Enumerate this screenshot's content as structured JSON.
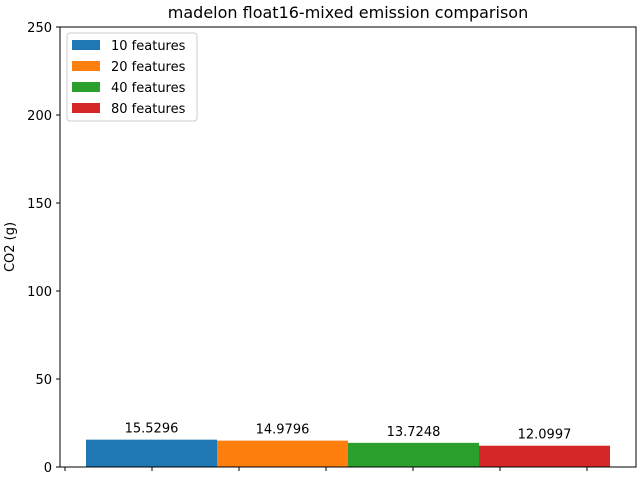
{
  "chart_data": {
    "type": "bar",
    "title": "madelon float16-mixed emission comparison",
    "xlabel": "",
    "ylabel": "CO2 (g)",
    "ylim": [
      0,
      250
    ],
    "yticks": [
      0,
      50,
      100,
      150,
      200,
      250
    ],
    "grid": false,
    "legend_position": "top-left",
    "series": [
      {
        "name": "10 features",
        "color": "#1f77b4",
        "values": [
          15.5296
        ]
      },
      {
        "name": "20 features",
        "color": "#ff7f0e",
        "values": [
          14.9796
        ]
      },
      {
        "name": "40 features",
        "color": "#2ca02c",
        "values": [
          13.7248
        ]
      },
      {
        "name": "80 features",
        "color": "#d62728",
        "values": [
          12.0997
        ]
      }
    ],
    "data_labels": [
      "15.5296",
      "14.9796",
      "13.7248",
      "12.0997"
    ]
  }
}
